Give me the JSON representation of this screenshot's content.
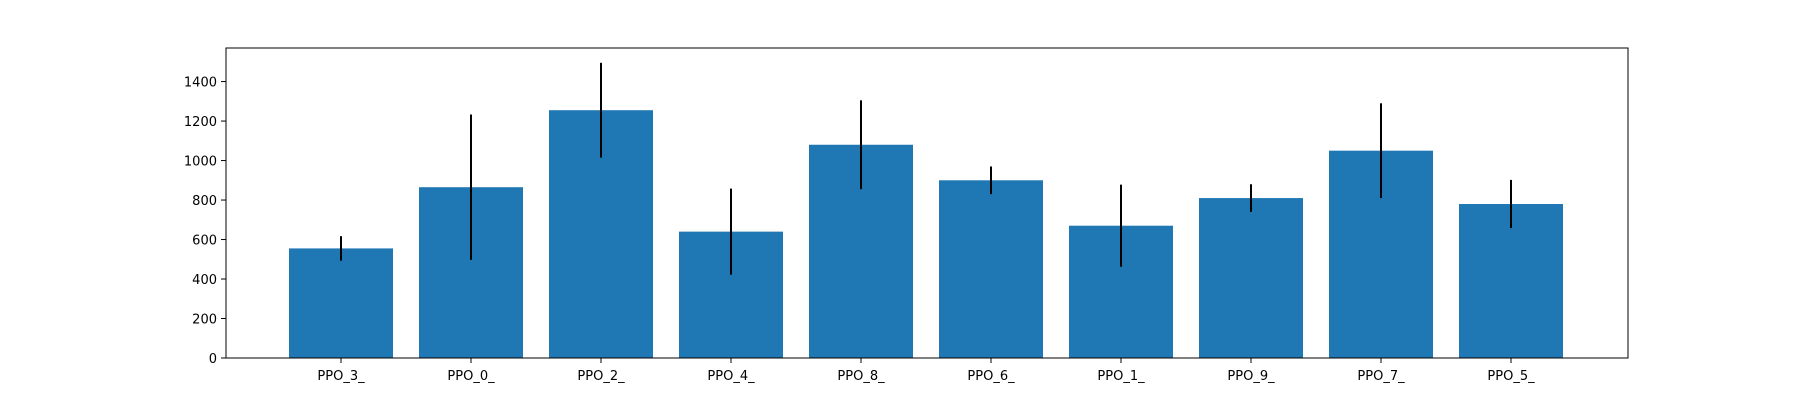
{
  "chart_data": {
    "type": "bar",
    "title": "",
    "xlabel": "",
    "ylabel": "",
    "categories": [
      "PPO_3_",
      "PPO_0_",
      "PPO_2_",
      "PPO_4_",
      "PPO_8_",
      "PPO_6_",
      "PPO_1_",
      "PPO_9_",
      "PPO_7_",
      "PPO_5_"
    ],
    "values": [
      555,
      865,
      1255,
      640,
      1080,
      900,
      670,
      810,
      1050,
      780
    ],
    "errors": [
      62,
      368,
      240,
      218,
      225,
      70,
      208,
      70,
      240,
      122
    ],
    "ylim": [
      0,
      1570
    ],
    "yticks": [
      0,
      200,
      400,
      600,
      800,
      1000,
      1200,
      1400
    ],
    "grid": false,
    "bar_color": "#1f77b4",
    "error_color": "#000000"
  }
}
